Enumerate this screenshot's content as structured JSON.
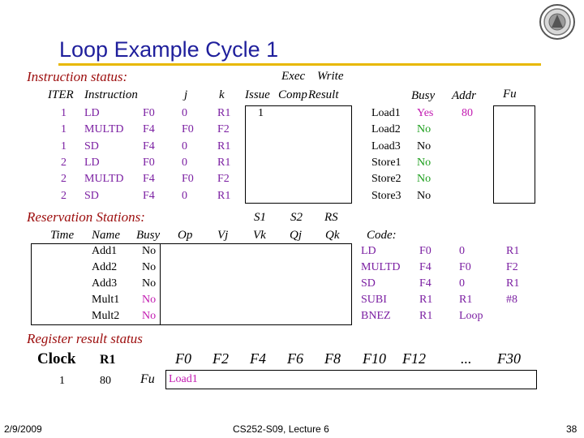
{
  "title": "Loop Example Cycle 1",
  "instruction_status": {
    "label": "Instruction status:",
    "col_headers": [
      "ITER",
      "Instruction",
      "j",
      "k",
      "Issue",
      "Exec Comp",
      "Write Result"
    ],
    "exec_top": "Exec",
    "write_top": "Write",
    "exec_bottom": "Comp",
    "write_bottom": "Result",
    "rows": [
      {
        "iter": "1",
        "op": "LD",
        "reg": "F0",
        "j": "0",
        "k": "R1",
        "issue": "1"
      },
      {
        "iter": "1",
        "op": "MULTD",
        "reg": "F4",
        "j": "F0",
        "k": "F2",
        "issue": ""
      },
      {
        "iter": "1",
        "op": "SD",
        "reg": "F4",
        "j": "0",
        "k": "R1",
        "issue": ""
      },
      {
        "iter": "2",
        "op": "LD",
        "reg": "F0",
        "j": "0",
        "k": "R1",
        "issue": ""
      },
      {
        "iter": "2",
        "op": "MULTD",
        "reg": "F4",
        "j": "F0",
        "k": "F2",
        "issue": ""
      },
      {
        "iter": "2",
        "op": "SD",
        "reg": "F4",
        "j": "0",
        "k": "R1",
        "issue": ""
      }
    ]
  },
  "load_store": {
    "col_busy": "Busy",
    "col_addr": "Addr",
    "col_fu": "Fu",
    "rows": [
      {
        "name": "Load1",
        "busy": "Yes",
        "addr": "80"
      },
      {
        "name": "Load2",
        "busy": "No",
        "addr": ""
      },
      {
        "name": "Load3",
        "busy": "No",
        "addr": ""
      },
      {
        "name": "Store1",
        "busy": "No",
        "addr": ""
      },
      {
        "name": "Store2",
        "busy": "No",
        "addr": ""
      },
      {
        "name": "Store3",
        "busy": "No",
        "addr": ""
      }
    ]
  },
  "reservation_stations": {
    "label": "Reservation Stations:",
    "headers_top": {
      "s1": "S1",
      "s2": "S2",
      "rs": "RS"
    },
    "headers": {
      "time": "Time",
      "name": "Name",
      "busy": "Busy",
      "op": "Op",
      "vj": "Vj",
      "vk": "Vk",
      "qj": "Qj",
      "qk": "Qk",
      "code": "Code:"
    },
    "rows": [
      {
        "name": "Add1",
        "busy": "No"
      },
      {
        "name": "Add2",
        "busy": "No"
      },
      {
        "name": "Add3",
        "busy": "No"
      },
      {
        "name": "Mult1",
        "busy": "No"
      },
      {
        "name": "Mult2",
        "busy": "No"
      }
    ]
  },
  "code": [
    {
      "op": "LD",
      "a": "F0",
      "b": "0",
      "c": "R1"
    },
    {
      "op": "MULTD",
      "a": "F4",
      "b": "F0",
      "c": "F2"
    },
    {
      "op": "SD",
      "a": "F4",
      "b": "0",
      "c": "R1"
    },
    {
      "op": "SUBI",
      "a": "R1",
      "b": "R1",
      "c": "#8"
    },
    {
      "op": "BNEZ",
      "a": "R1",
      "b": "Loop",
      "c": ""
    }
  ],
  "register_result": {
    "label": "Register result status",
    "clock_label": "Clock",
    "r1_label": "R1",
    "clock_value": "1",
    "r1_value": "80",
    "fu_label": "Fu",
    "regs": [
      "F0",
      "F2",
      "F4",
      "F6",
      "F8",
      "F10",
      "F12",
      "...",
      "F30"
    ],
    "values": [
      "Load1",
      "",
      "",
      "",
      "",
      "",
      "",
      "",
      ""
    ]
  },
  "footer": {
    "date": "2/9/2009",
    "course": "CS252-S09, Lecture 6",
    "page": "38"
  },
  "colors": {
    "title": "#1f1f9c",
    "section": "#9c0c0c",
    "rule": "#e8b800",
    "purple": "#7b1fa2",
    "green": "#1b9e1b",
    "magenta": "#c218b0"
  }
}
